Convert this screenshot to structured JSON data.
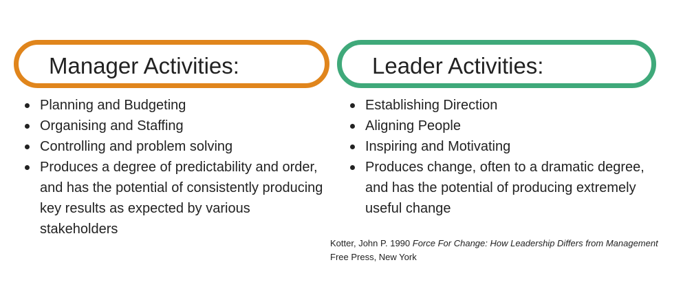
{
  "colors": {
    "manager_accent": "#E0851C",
    "leader_accent": "#3FA97A"
  },
  "manager": {
    "title": "Manager Activities:",
    "items": [
      "Planning and Budgeting",
      "Organising and Staffing",
      "Controlling and problem solving",
      "Produces a degree of predictability and order, and has the potential of consistently producing key results as expected by various stakeholders"
    ]
  },
  "leader": {
    "title": "Leader Activities:",
    "items": [
      "Establishing Direction",
      "Aligning People",
      "Inspiring and Motivating",
      "Produces change, often to a dramatic degree, and has the potential of producing extremely useful change"
    ]
  },
  "citation": {
    "author": "Kotter, John P. 1990",
    "book_title": "Force For Change: How Leadership Differs from Management",
    "publisher": "Free Press, New York"
  }
}
